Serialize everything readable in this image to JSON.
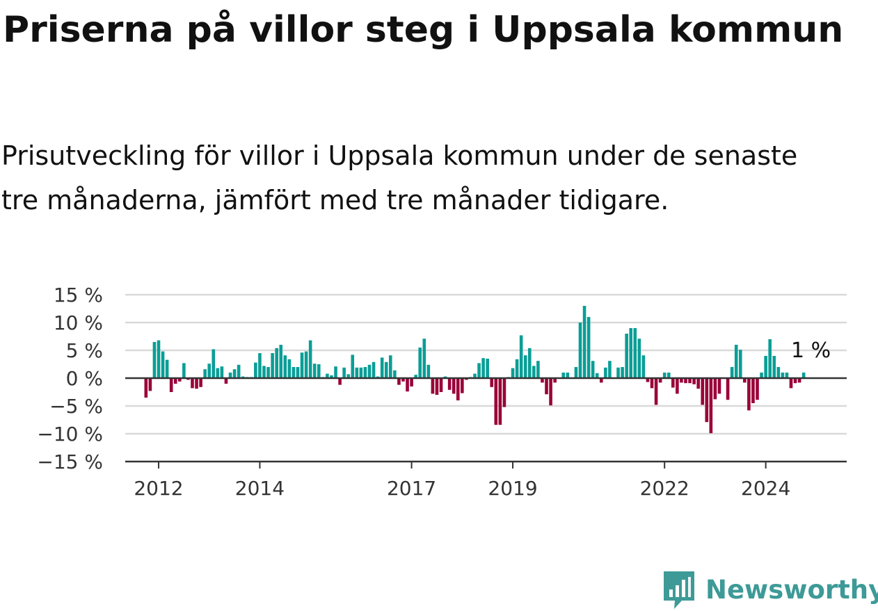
{
  "title": "Priserna på villor steg i Uppsala kommun",
  "subtitle": "Prisutveckling för villor i Uppsala kommun under de senaste tre månaderna, jämfört med tre månader tidigare.",
  "brand": {
    "name": "Newsworthy",
    "icon": "newsworthy-logo-icon",
    "color": "#3d9a97"
  },
  "colors": {
    "positive": "#0a9e96",
    "negative": "#9a0038",
    "grid": "#d9d9d9",
    "axis": "#333333"
  },
  "chart_data": {
    "type": "bar",
    "title": "",
    "xlabel": "",
    "ylabel": "",
    "ylim": [
      -15,
      15
    ],
    "y_ticks": [
      15,
      10,
      5,
      0,
      -5,
      -10,
      -15
    ],
    "y_tick_labels": [
      "15 %",
      "10 %",
      "5 %",
      "0 %",
      "−5 %",
      "−10 %",
      "−15 %"
    ],
    "x_ticks": [
      2012,
      2014,
      2017,
      2019,
      2022,
      2024
    ],
    "annotation": {
      "label": "1 %",
      "value": 1
    },
    "x_start": "2011-10",
    "x_end": "2025-05",
    "values": [
      -3.5,
      -2.3,
      6.5,
      6.8,
      4.8,
      3.3,
      -2.5,
      -1.0,
      -0.6,
      2.7,
      -0.3,
      -1.8,
      -1.9,
      -1.6,
      1.6,
      2.6,
      5.2,
      1.8,
      2.1,
      -1.0,
      1.0,
      1.6,
      2.4,
      0.3,
      0.2,
      0.2,
      2.8,
      4.5,
      2.2,
      2.0,
      4.5,
      5.4,
      6.0,
      4.1,
      3.4,
      2.0,
      2.0,
      4.6,
      4.8,
      6.8,
      2.6,
      2.5,
      0.2,
      0.8,
      0.5,
      2.1,
      -1.2,
      1.9,
      0.7,
      4.2,
      1.9,
      1.9,
      2.0,
      2.4,
      2.9,
      0.3,
      3.7,
      2.9,
      4.1,
      1.4,
      -1.2,
      -0.6,
      -2.4,
      -1.5,
      0.6,
      5.5,
      7.1,
      2.4,
      -2.8,
      -3.0,
      -2.5,
      0.3,
      -2.1,
      -2.8,
      -4.0,
      -2.7,
      -0.3,
      0.2,
      0.8,
      2.7,
      3.6,
      3.5,
      -1.6,
      -8.4,
      -8.4,
      -5.2,
      0.2,
      1.8,
      3.4,
      7.7,
      4.1,
      5.4,
      2.2,
      3.1,
      -0.8,
      -2.9,
      -4.9,
      -0.8,
      0.1,
      1.0,
      1.0,
      0.1,
      2.0,
      10.0,
      13.0,
      11.0,
      3.1,
      0.9,
      -0.8,
      1.9,
      3.1,
      0.1,
      1.9,
      2.0,
      8.0,
      9.0,
      9.0,
      7.1,
      4.1,
      -0.7,
      -1.8,
      -4.8,
      -0.8,
      1.0,
      1.0,
      -1.7,
      -2.8,
      -0.8,
      -0.9,
      -0.9,
      -1.1,
      -1.9,
      -4.8,
      -7.9,
      -9.9,
      -3.8,
      -2.8,
      0.1,
      -3.9,
      2.0,
      6.0,
      5.1,
      -0.8,
      -5.8,
      -4.5,
      -3.9,
      1.0,
      4.0,
      7.0,
      4.0,
      2.0,
      1.0,
      1.0,
      -1.8,
      -0.9,
      -0.8,
      1.0,
      0.1
    ]
  }
}
